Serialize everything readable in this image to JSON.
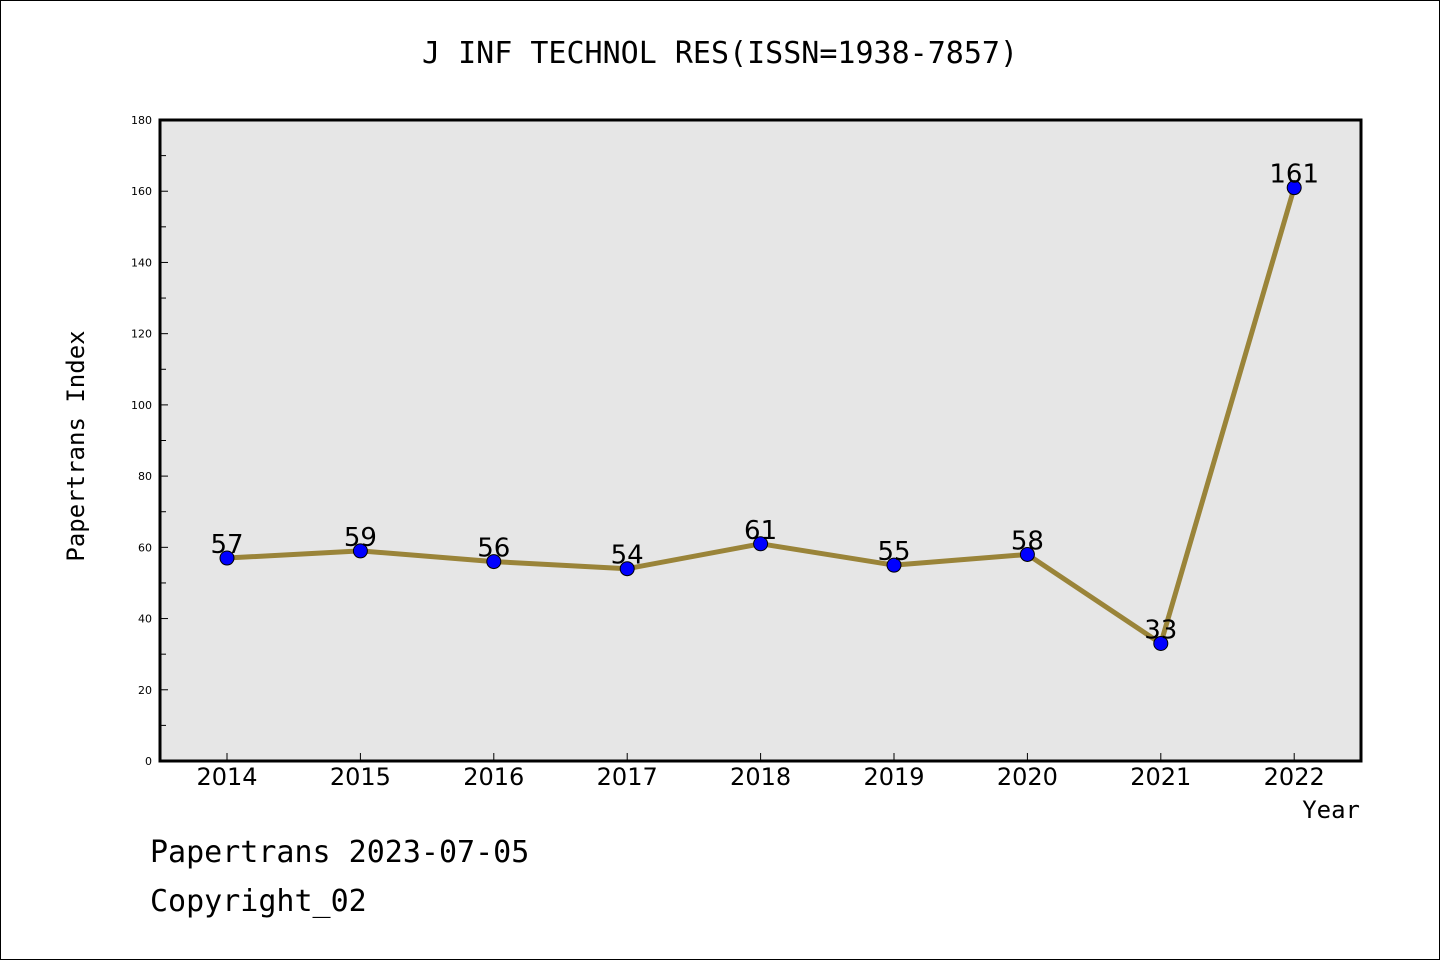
{
  "chart_data": {
    "type": "line",
    "title": "J INF TECHNOL RES(ISSN=1938-7857)",
    "xlabel": "Year",
    "ylabel": "Papertrans Index",
    "categories": [
      "2014",
      "2015",
      "2016",
      "2017",
      "2018",
      "2019",
      "2020",
      "2021",
      "2022"
    ],
    "series": [
      {
        "values": [
          57,
          59,
          56,
          54,
          61,
          55,
          58,
          33,
          161
        ]
      }
    ],
    "ylim": [
      0,
      180
    ],
    "yticks": [
      0,
      20,
      40,
      60,
      80,
      100,
      120,
      140,
      160,
      180
    ],
    "grid": false,
    "legend": "none",
    "colors": {
      "line": "#9a8439",
      "marker": "#0000ff",
      "plot_background": "#e6e6e6"
    }
  },
  "footer": {
    "line1": "Papertrans 2023-07-05",
    "line2": "Copyright_02"
  }
}
